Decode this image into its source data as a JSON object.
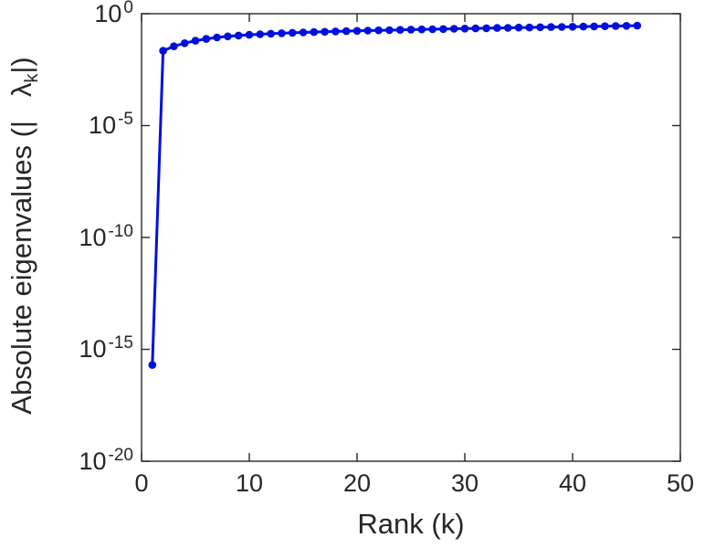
{
  "chart_data": {
    "type": "line",
    "title": "",
    "xlabel": "Rank (k)",
    "ylabel": "Absolute eigenvalues (|λk|)",
    "ylabel_parts": {
      "prefix": "Absolute eigenvalues (|",
      "lambda": "   λ",
      "sub": "k",
      "suffix": "|)"
    },
    "xlim": [
      0,
      50
    ],
    "y_scale": "log",
    "ylim_exp": [
      -20,
      0
    ],
    "grid": false,
    "legend": "none",
    "xticks": [
      0,
      10,
      20,
      30,
      40,
      50
    ],
    "xtick_labels": [
      "0",
      "10",
      "20",
      "30",
      "40",
      "50"
    ],
    "yticks_exp": [
      0,
      -5,
      -10,
      -15,
      -20
    ],
    "ytick_labels": [
      {
        "base": "10",
        "exp": "0"
      },
      {
        "base": "10",
        "exp": "-5"
      },
      {
        "base": "10",
        "exp": "-10"
      },
      {
        "base": "10",
        "exp": "-15"
      },
      {
        "base": "10",
        "exp": "-20"
      }
    ],
    "line_color": "#0010dd",
    "axis_color": "#262626",
    "marker": "circle",
    "series_name": "absolute-eigenvalues",
    "x": [
      1,
      2,
      3,
      4,
      5,
      6,
      7,
      8,
      9,
      10,
      11,
      12,
      13,
      14,
      15,
      16,
      17,
      18,
      19,
      20,
      21,
      22,
      23,
      24,
      25,
      26,
      27,
      28,
      29,
      30,
      31,
      32,
      33,
      34,
      35,
      36,
      37,
      38,
      39,
      40,
      41,
      42,
      43,
      44,
      45,
      46
    ],
    "y": [
      2e-16,
      0.022,
      0.035,
      0.048,
      0.062,
      0.075,
      0.087,
      0.097,
      0.106,
      0.114,
      0.121,
      0.128,
      0.134,
      0.14,
      0.146,
      0.151,
      0.156,
      0.161,
      0.166,
      0.171,
      0.176,
      0.18,
      0.185,
      0.189,
      0.194,
      0.198,
      0.203,
      0.207,
      0.212,
      0.216,
      0.221,
      0.225,
      0.23,
      0.234,
      0.239,
      0.243,
      0.248,
      0.253,
      0.257,
      0.262,
      0.267,
      0.272,
      0.277,
      0.282,
      0.287,
      0.292
    ]
  }
}
